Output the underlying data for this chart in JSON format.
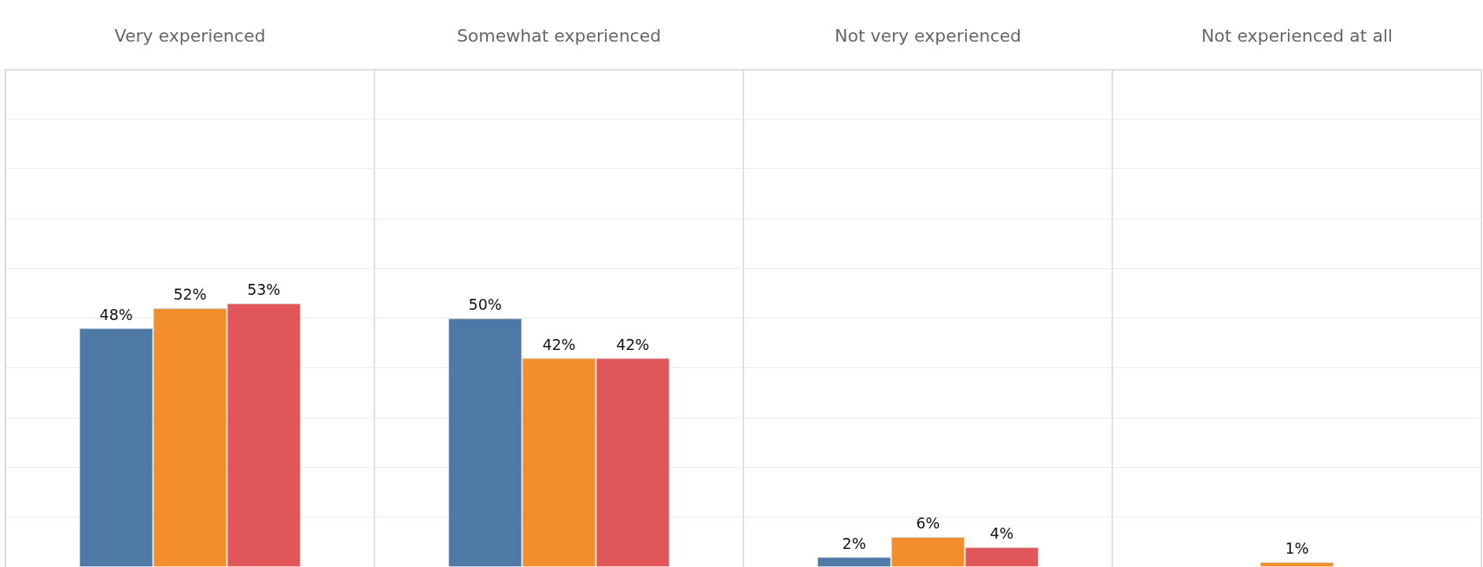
{
  "chart_data": {
    "type": "bar",
    "categories": [
      "Very experienced",
      "Somewhat experienced",
      "Not very experienced",
      "Not experienced at all"
    ],
    "series": [
      {
        "color": "#4e79a7",
        "values": [
          48,
          50,
          2,
          null
        ],
        "value_labels": [
          "48%",
          "50%",
          "2%",
          null
        ]
      },
      {
        "color": "#f28e2b",
        "values": [
          52,
          42,
          6,
          1
        ],
        "value_labels": [
          "52%",
          "42%",
          "6%",
          "1%"
        ]
      },
      {
        "color": "#e15759",
        "values": [
          53,
          42,
          4,
          null
        ],
        "value_labels": [
          "53%",
          "42%",
          "4%",
          null
        ]
      }
    ],
    "ylim": [
      0,
      100
    ],
    "grid": true,
    "tick_labels": "x",
    "legend": false
  }
}
